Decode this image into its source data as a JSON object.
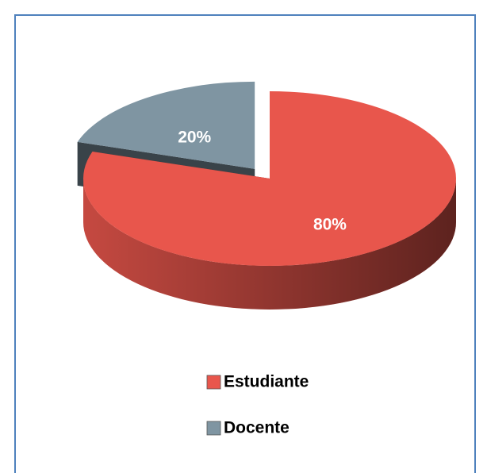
{
  "chart_data": {
    "type": "pie",
    "categories": [
      "Estudiante",
      "Docente"
    ],
    "values": [
      80,
      20
    ],
    "value_labels": [
      "80%",
      "20%"
    ],
    "colors": [
      "#e8564c",
      "#7f95a2"
    ],
    "legend": "bottom"
  }
}
